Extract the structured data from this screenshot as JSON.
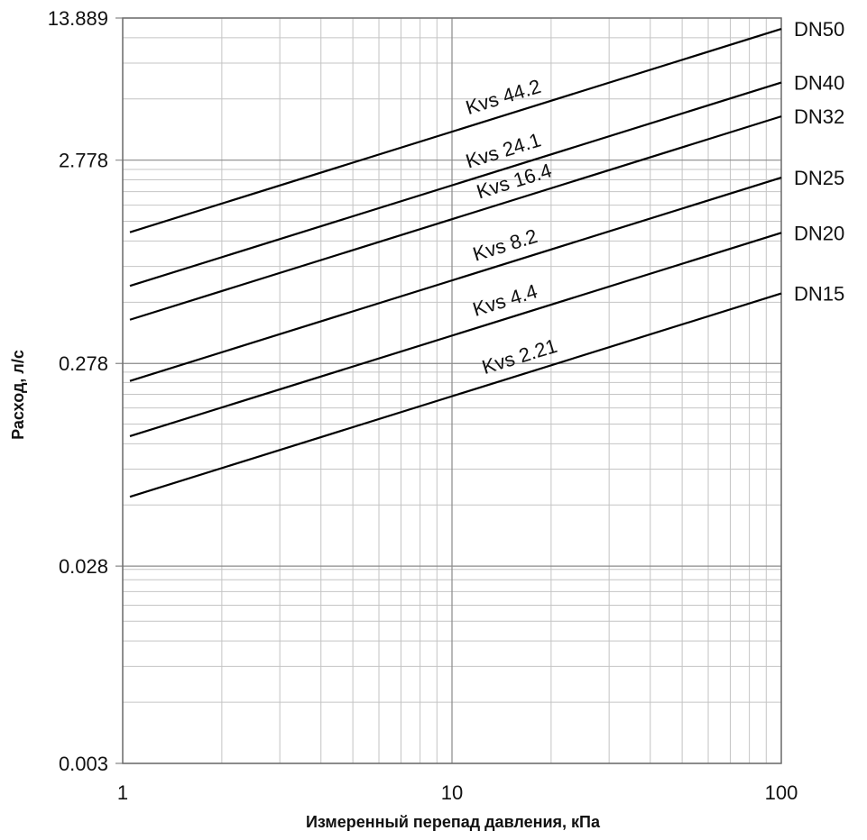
{
  "chart_data": {
    "type": "line",
    "xlabel": "Измеренный перепад давления, кПа",
    "ylabel": "Расход, л/с",
    "x_scale": "log",
    "y_scale": "log",
    "xlim": [
      1,
      100
    ],
    "ylim": [
      0.003,
      13.889
    ],
    "x_ticks": [
      {
        "value": 1,
        "label": "1"
      },
      {
        "value": 10,
        "label": "10"
      },
      {
        "value": 100,
        "label": "100"
      }
    ],
    "y_ticks": [
      {
        "value": 0.003,
        "label": "0.003"
      },
      {
        "value": 0.028,
        "label": "0.028"
      },
      {
        "value": 0.278,
        "label": "0.278"
      },
      {
        "value": 2.778,
        "label": "2.778"
      },
      {
        "value": 13.889,
        "label": "13.889"
      }
    ],
    "grid": true,
    "series": [
      {
        "name": "DN50",
        "annotation": "Kvs 44.2",
        "x": [
          1,
          100
        ],
        "y": [
          1.228,
          12.28
        ]
      },
      {
        "name": "DN40",
        "annotation": "Kvs 24.1",
        "x": [
          1,
          100
        ],
        "y": [
          0.669,
          6.69
        ]
      },
      {
        "name": "DN32",
        "annotation": "Kvs 16.4",
        "x": [
          1,
          100
        ],
        "y": [
          0.456,
          4.56
        ]
      },
      {
        "name": "DN25",
        "annotation": "Kvs 8.2",
        "x": [
          1,
          100
        ],
        "y": [
          0.228,
          2.28
        ]
      },
      {
        "name": "DN20",
        "annotation": "Kvs 4.4",
        "x": [
          1,
          100
        ],
        "y": [
          0.122,
          1.22
        ]
      },
      {
        "name": "DN15",
        "annotation": "Kvs 2.21",
        "x": [
          1,
          100
        ],
        "y": [
          0.0614,
          0.614
        ]
      }
    ]
  }
}
